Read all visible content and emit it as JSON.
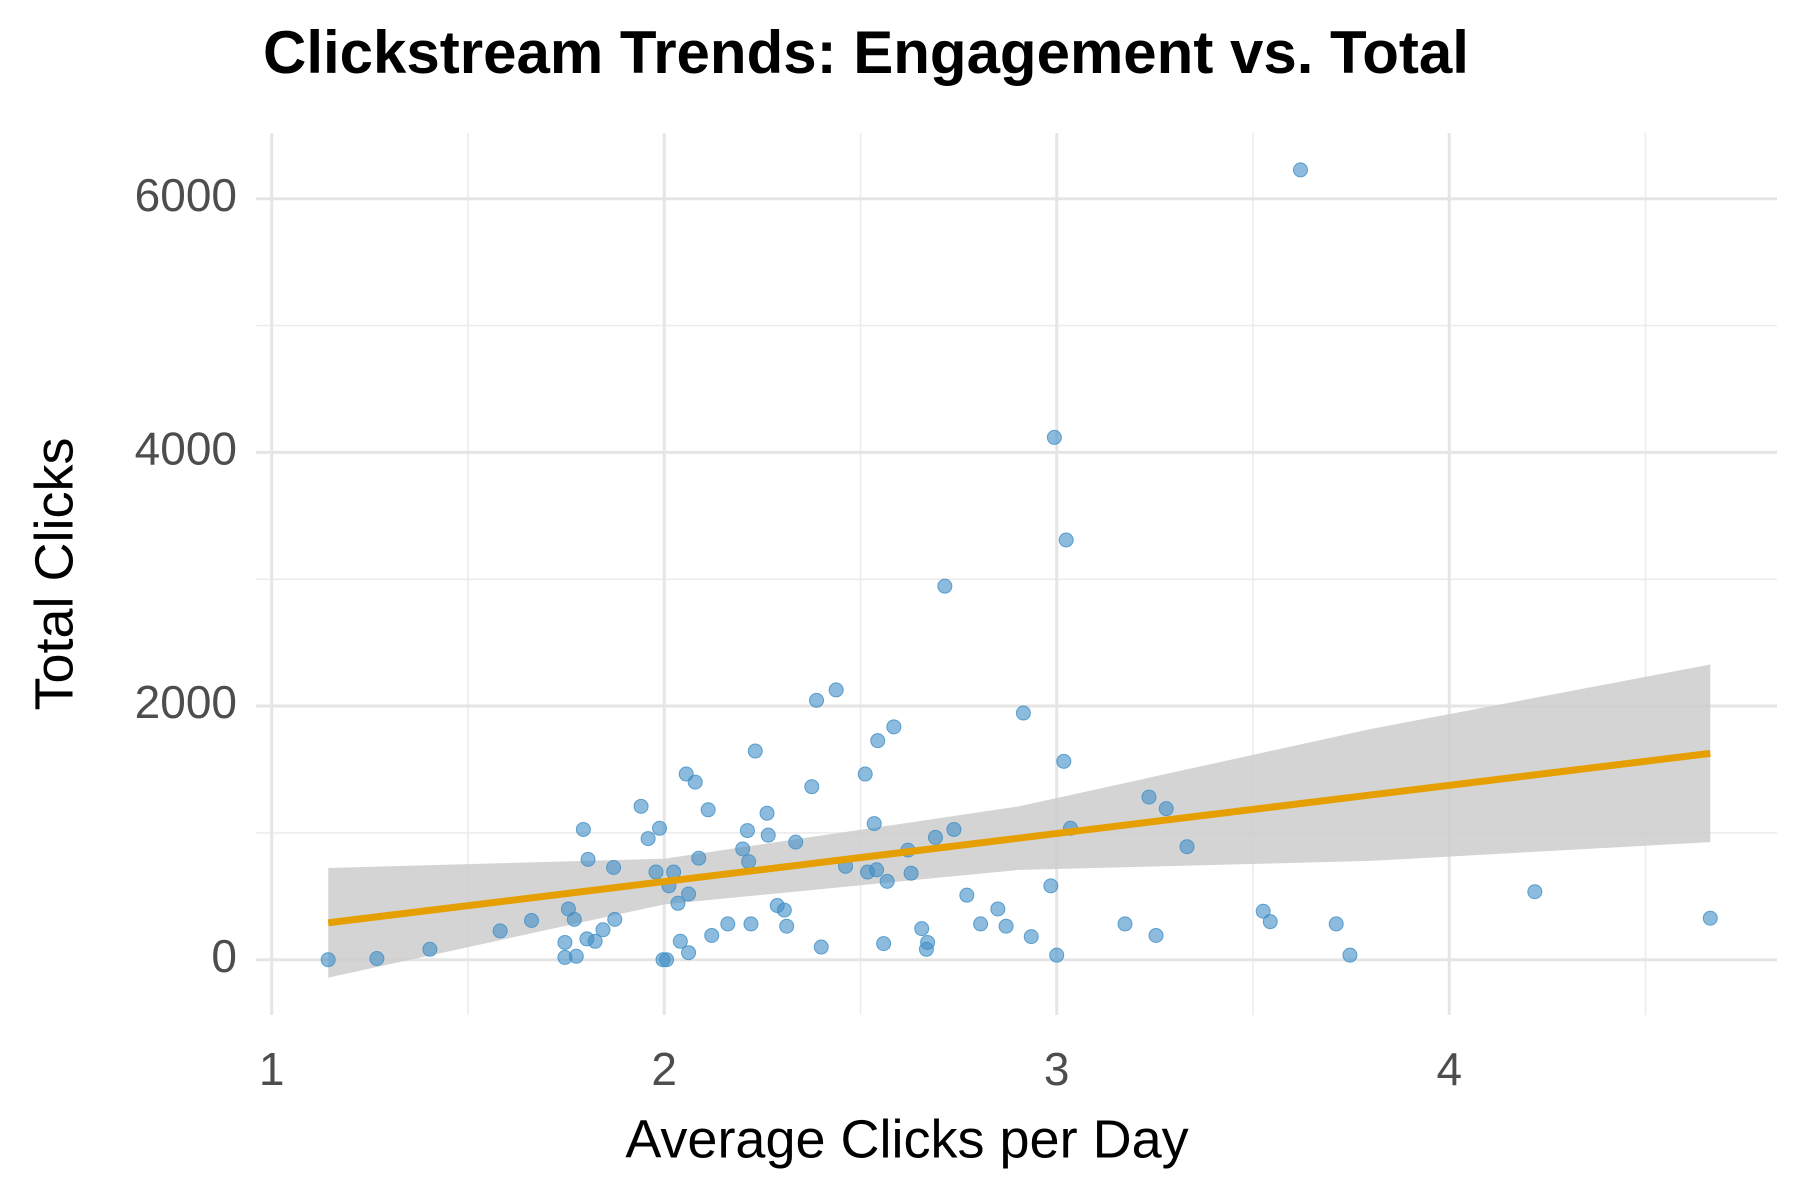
{
  "chart_data": {
    "type": "scatter",
    "title": "Clickstream Trends: Engagement vs. Total",
    "x_label": "Average Clicks per Day",
    "y_label": "Total Clicks",
    "color": "#3f8ec6",
    "x": [
      1.144,
      1.268,
      1.403,
      1.582,
      1.662,
      1.747,
      1.747,
      1.756,
      1.771,
      1.776,
      1.794,
      1.803,
      1.806,
      1.824,
      1.844,
      1.871,
      1.874,
      1.941,
      1.959,
      1.979,
      1.988,
      1.997,
      2.006,
      2.012,
      2.024,
      2.035,
      2.041,
      2.056,
      2.062,
      2.062,
      2.079,
      2.088,
      2.112,
      2.121,
      2.162,
      2.2,
      2.212,
      2.215,
      2.221,
      2.232,
      2.262,
      2.265,
      2.288,
      2.306,
      2.312,
      2.335,
      2.376,
      2.388,
      2.4,
      2.438,
      2.462,
      2.512,
      2.518,
      2.535,
      2.541,
      2.544,
      2.559,
      2.568,
      2.585,
      2.621,
      2.629,
      2.656,
      2.668,
      2.671,
      2.691,
      2.715,
      2.738,
      2.771,
      2.806,
      2.85,
      2.871,
      2.915,
      2.935,
      2.985,
      2.994,
      3.0,
      3.018,
      3.024,
      3.035,
      3.174,
      3.235,
      3.253,
      3.279,
      3.332,
      3.526,
      3.544,
      3.621,
      3.712,
      3.747,
      4.218,
      4.665
    ],
    "values": [
      0,
      9,
      82,
      227,
      309,
      136,
      18,
      400,
      318,
      27,
      1027,
      164,
      791,
      145,
      236,
      727,
      318,
      1209,
      955,
      691,
      1036,
      0,
      0,
      582,
      691,
      445,
      145,
      1464,
      518,
      55,
      1400,
      800,
      1182,
      191,
      282,
      873,
      1018,
      773,
      282,
      1645,
      1155,
      982,
      427,
      391,
      264,
      927,
      1364,
      2045,
      100,
      2127,
      736,
      1464,
      691,
      1073,
      709,
      1727,
      127,
      618,
      1836,
      864,
      682,
      245,
      82,
      136,
      964,
      2945,
      1027,
      509,
      282,
      400,
      264,
      1945,
      182,
      582,
      4118,
      36,
      1564,
      3309,
      1036,
      282,
      1282,
      191,
      1191,
      891,
      382,
      300,
      6227,
      282,
      36,
      536,
      327
    ],
    "trend": {
      "color": "#e69f00",
      "band_color": "#cccccc",
      "x": [
        1.144,
        2,
        2.9,
        3.8,
        4.665
      ],
      "values": [
        291,
        616,
        957,
        1299,
        1627
      ],
      "lower": [
        -141,
        436,
        707,
        779,
        927
      ],
      "upper": [
        723,
        796,
        1207,
        1819,
        2327
      ]
    },
    "xlim": [
      0.96,
      4.835
    ],
    "ylim": [
      -436,
      6518
    ],
    "xticks": [
      1,
      2,
      3,
      4
    ],
    "yticks": [
      0,
      2000,
      4000,
      6000
    ],
    "x_minor_grid": [
      1.5,
      2.5,
      3.5,
      4.5
    ],
    "y_minor_grid": [
      1000,
      3000,
      5000
    ],
    "grid": true
  }
}
